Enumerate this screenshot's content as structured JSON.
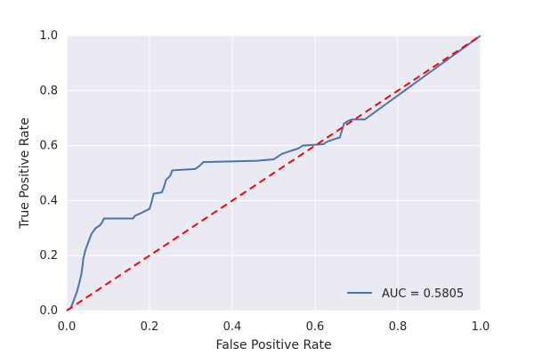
{
  "chart_data": {
    "type": "line",
    "title": "",
    "xlabel": "False Positive Rate",
    "ylabel": "True Positive Rate",
    "xlim": [
      0.0,
      1.0
    ],
    "ylim": [
      0.0,
      1.0
    ],
    "xticks": [
      "0.0",
      "0.2",
      "0.4",
      "0.6",
      "0.8",
      "1.0"
    ],
    "yticks": [
      "0.0",
      "0.2",
      "0.4",
      "0.6",
      "0.8",
      "1.0"
    ],
    "grid": true,
    "legend_position": "lower-right",
    "background_color": "#eaeaf2",
    "grid_color": "#ffffff",
    "series": [
      {
        "name": "AUC = 0.5805",
        "color": "#4c72b0",
        "style": "solid",
        "x": [
          0.0,
          0.01,
          0.015,
          0.02,
          0.025,
          0.03,
          0.035,
          0.038,
          0.04,
          0.042,
          0.045,
          0.05,
          0.055,
          0.06,
          0.065,
          0.07,
          0.08,
          0.085,
          0.09,
          0.16,
          0.165,
          0.18,
          0.2,
          0.205,
          0.21,
          0.23,
          0.235,
          0.24,
          0.25,
          0.255,
          0.31,
          0.32,
          0.33,
          0.46,
          0.5,
          0.51,
          0.52,
          0.53,
          0.55,
          0.56,
          0.57,
          0.62,
          0.63,
          0.64,
          0.66,
          0.67,
          0.68,
          0.69,
          0.72,
          1.0
        ],
        "y": [
          0.0,
          0.01,
          0.03,
          0.05,
          0.07,
          0.1,
          0.13,
          0.16,
          0.19,
          0.2,
          0.22,
          0.24,
          0.26,
          0.28,
          0.29,
          0.3,
          0.31,
          0.32,
          0.335,
          0.335,
          0.345,
          0.355,
          0.37,
          0.395,
          0.425,
          0.43,
          0.45,
          0.475,
          0.49,
          0.51,
          0.515,
          0.525,
          0.54,
          0.545,
          0.55,
          0.56,
          0.57,
          0.575,
          0.585,
          0.59,
          0.6,
          0.605,
          0.615,
          0.62,
          0.63,
          0.68,
          0.69,
          0.695,
          0.695,
          1.0
        ]
      },
      {
        "name": "",
        "color": "#ff0000",
        "style": "dashed",
        "x": [
          0.0,
          1.0
        ],
        "y": [
          0.0,
          1.0
        ]
      }
    ],
    "legend": [
      {
        "label": "AUC = 0.5805",
        "color": "#4c72b0"
      }
    ]
  }
}
